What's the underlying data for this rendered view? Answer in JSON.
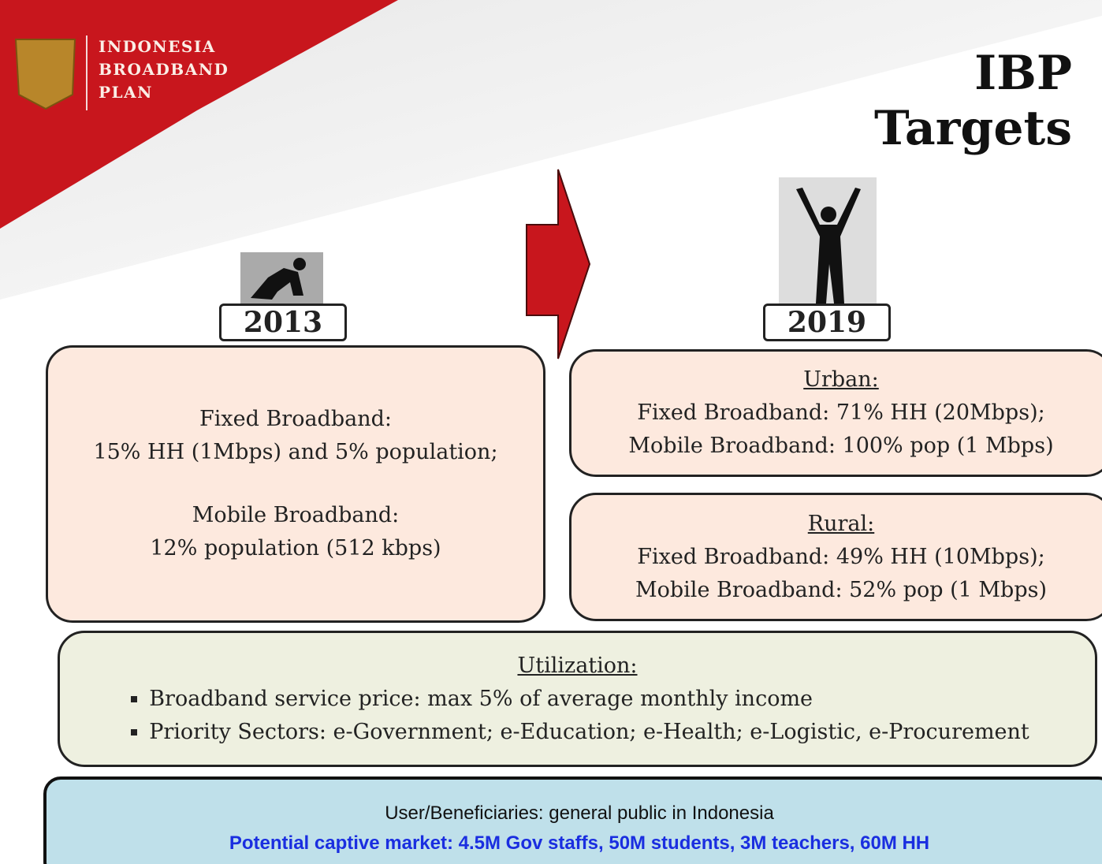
{
  "logo": {
    "lines": [
      "INDONESIA",
      "BROADBAND",
      "PLAN"
    ]
  },
  "title": "IBP Targets",
  "current": {
    "year": "2013",
    "lines": [
      "Fixed Broadband:",
      "15% HH (1Mbps) and 5% population;",
      "Mobile Broadband:",
      "12% population (512 kbps)"
    ]
  },
  "target": {
    "year": "2019",
    "urban": {
      "heading": "Urban:",
      "lines": [
        "Fixed Broadband: 71% HH (20Mbps);",
        "Mobile Broadband: 100% pop (1 Mbps)"
      ]
    },
    "rural": {
      "heading": "Rural:",
      "lines": [
        "Fixed Broadband: 49% HH (10Mbps);",
        "Mobile Broadband: 52% pop (1 Mbps)"
      ]
    }
  },
  "utilization": {
    "heading": "Utilization:",
    "bullets": [
      "Broadband service price: max 5% of average monthly income",
      "Priority Sectors: e-Government; e-Education; e-Health; e-Logistic, e-Procurement"
    ]
  },
  "footer": {
    "lines": [
      "User/Beneficiaries: general public in Indonesia",
      "Potential captive market: 4.5M Gov staffs, 50M students, 3M teachers, 60M HH"
    ]
  }
}
